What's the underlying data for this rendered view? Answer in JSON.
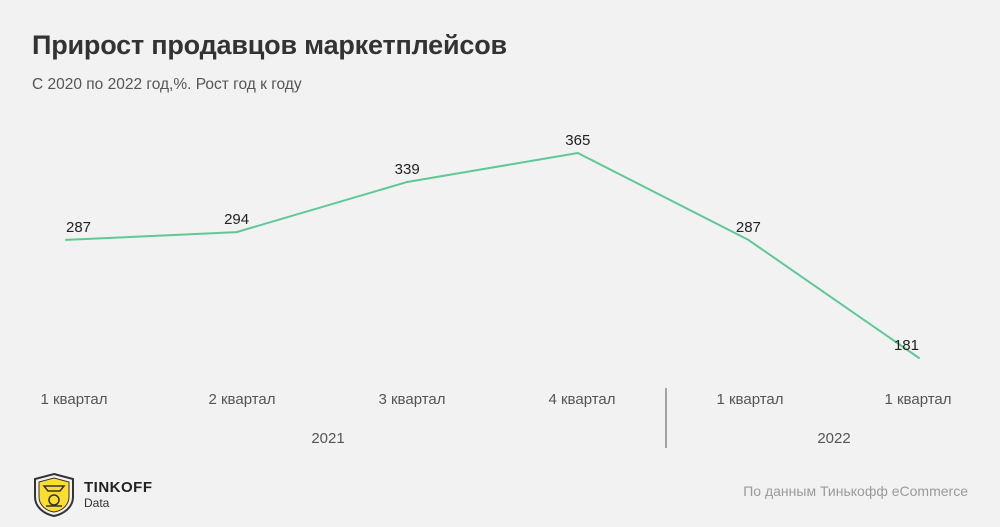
{
  "header": {
    "title": "Прирост продавцов маркетплейсов",
    "subtitle": "С 2020 по 2022 год,%. Рост год к году"
  },
  "chart_data": {
    "type": "line",
    "categories": [
      "1 квартал",
      "2 квартал",
      "3  квартал",
      "4 квартал",
      "1 квартал",
      "1 квартал"
    ],
    "values": [
      287,
      294,
      339,
      365,
      287,
      181
    ],
    "groups": [
      {
        "label": "2021",
        "count": 4
      },
      {
        "label": "2022",
        "count": 2
      }
    ],
    "line_color": "#5ec994",
    "grid": false,
    "legend": "none"
  },
  "footer": {
    "brand_name": "TINKOFF",
    "brand_sub": "Data",
    "logo_icon": "tinkoff-shield-icon",
    "logo_color": "#ffdd2d",
    "source": "По данным Тинькофф eCommerce"
  }
}
